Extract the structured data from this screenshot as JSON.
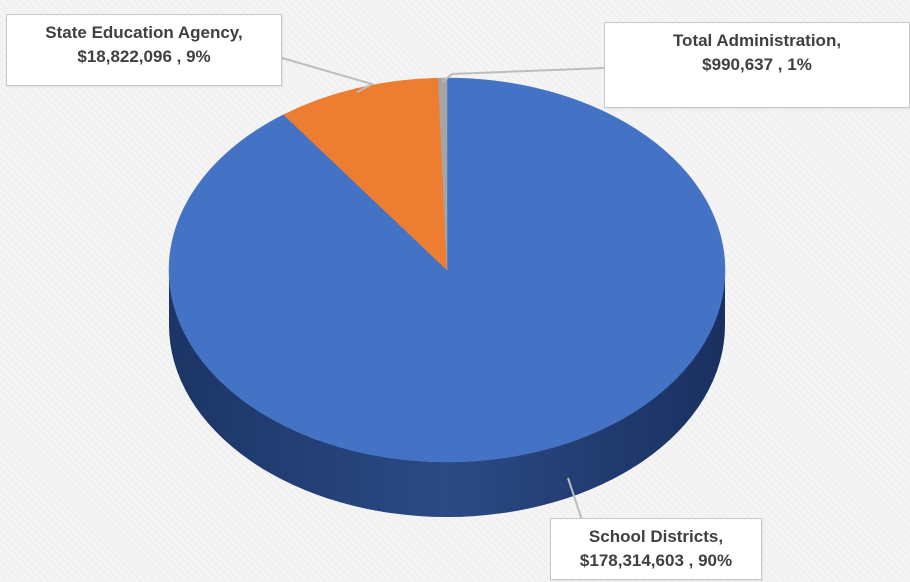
{
  "chart_data": {
    "type": "pie",
    "three_d": true,
    "slices": [
      {
        "name": "School Districts",
        "value": 178314603,
        "value_label": "$178,314,603",
        "percent_label": "90%",
        "color": "#4472C4",
        "side_color": "#2E4F8E"
      },
      {
        "name": "State Education Agency",
        "value": 18822096,
        "value_label": "$18,822,096",
        "percent_label": "9%",
        "color": "#ED7D31",
        "side_color": "#A95A24"
      },
      {
        "name": "Total Administration",
        "value": 990637,
        "value_label": "$990,637",
        "percent_label": "1%",
        "color": "#A5A5A5",
        "side_color": "#767676"
      }
    ],
    "labels": [
      {
        "line1": "School Districts,",
        "line2": "$178,314,603 , 90%"
      },
      {
        "line1": "State Education Agency,",
        "line2": "$18,822,096 , 9%"
      },
      {
        "line1": "Total Administration,",
        "line2": "$990,637 , 1%"
      }
    ],
    "legend": "none"
  }
}
